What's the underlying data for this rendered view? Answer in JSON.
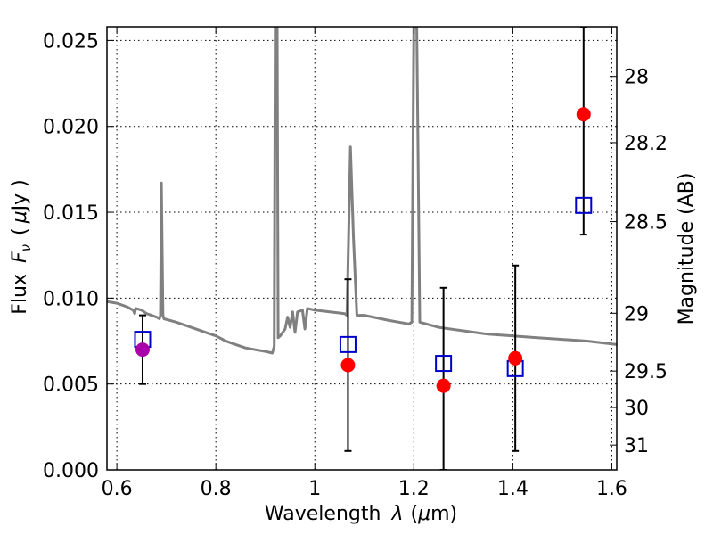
{
  "chart_data": {
    "type": "scatter",
    "xlabel": "Wavelength",
    "xlabel_symbol": "λ",
    "xlabel_unit_open": "(",
    "xlabel_unit_mu": "μ",
    "xlabel_unit_rest": "m)",
    "ylabel": "Flux",
    "ylabel_symbol": "F",
    "ylabel_symbol_sub": "ν",
    "ylabel_unit_open": "(",
    "ylabel_unit_mu": "μ",
    "ylabel_unit_rest": "Jy )",
    "y2label": "Magnitude (AB)",
    "xlim": [
      0.58,
      1.61
    ],
    "ylim": [
      0.0,
      0.0258
    ],
    "grid": true,
    "x_ticks": [
      {
        "value": 0.6,
        "label": "0.6"
      },
      {
        "value": 0.8,
        "label": "0.8"
      },
      {
        "value": 1.0,
        "label": "1"
      },
      {
        "value": 1.2,
        "label": "1.2"
      },
      {
        "value": 1.4,
        "label": "1.4"
      },
      {
        "value": 1.6,
        "label": "1.6"
      }
    ],
    "y_ticks": [
      {
        "value": 0.0,
        "label": "0.000"
      },
      {
        "value": 0.005,
        "label": "0.005"
      },
      {
        "value": 0.01,
        "label": "0.010"
      },
      {
        "value": 0.015,
        "label": "0.015"
      },
      {
        "value": 0.02,
        "label": "0.020"
      },
      {
        "value": 0.025,
        "label": "0.025"
      }
    ],
    "y2_ticks": [
      {
        "value": 28,
        "label": "28"
      },
      {
        "value": 28.2,
        "label": "28.2"
      },
      {
        "value": 28.5,
        "label": "28.5"
      },
      {
        "value": 29,
        "label": "29"
      },
      {
        "value": 29.5,
        "label": "29.5"
      },
      {
        "value": 30,
        "label": "30"
      },
      {
        "value": 31,
        "label": "31"
      }
    ],
    "series": [
      {
        "kind": "line",
        "color": "#808080",
        "points": [
          [
            0.58,
            0.0098
          ],
          [
            0.6,
            0.0097
          ],
          [
            0.62,
            0.0095
          ],
          [
            0.633,
            0.0093
          ],
          [
            0.636,
            0.0091
          ],
          [
            0.638,
            0.0094
          ],
          [
            0.65,
            0.0093
          ],
          [
            0.66,
            0.0091
          ],
          [
            0.67,
            0.009
          ],
          [
            0.68,
            0.0089
          ],
          [
            0.686,
            0.0088
          ],
          [
            0.688,
            0.009
          ],
          [
            0.69,
            0.0167
          ],
          [
            0.693,
            0.009
          ],
          [
            0.695,
            0.0088
          ],
          [
            0.72,
            0.0086
          ],
          [
            0.75,
            0.0083
          ],
          [
            0.78,
            0.008
          ],
          [
            0.8,
            0.0078
          ],
          [
            0.82,
            0.0075
          ],
          [
            0.84,
            0.0073
          ],
          [
            0.86,
            0.0071
          ],
          [
            0.88,
            0.007
          ],
          [
            0.9,
            0.0069
          ],
          [
            0.914,
            0.0068
          ],
          [
            0.918,
            0.0072
          ],
          [
            0.92,
            0.0258
          ],
          [
            0.924,
            0.0258
          ],
          [
            0.926,
            0.0077
          ],
          [
            0.93,
            0.0078
          ],
          [
            0.94,
            0.0082
          ],
          [
            0.945,
            0.0089
          ],
          [
            0.95,
            0.0083
          ],
          [
            0.955,
            0.0092
          ],
          [
            0.96,
            0.008
          ],
          [
            0.965,
            0.0092
          ],
          [
            0.975,
            0.0093
          ],
          [
            0.98,
            0.0082
          ],
          [
            0.985,
            0.0094
          ],
          [
            1.0,
            0.0093
          ],
          [
            1.03,
            0.0092
          ],
          [
            1.06,
            0.0091
          ],
          [
            1.065,
            0.009
          ],
          [
            1.072,
            0.0188
          ],
          [
            1.078,
            0.0135
          ],
          [
            1.085,
            0.009
          ],
          [
            1.1,
            0.009
          ],
          [
            1.15,
            0.0087
          ],
          [
            1.19,
            0.0085
          ],
          [
            1.196,
            0.0086
          ],
          [
            1.2,
            0.0258
          ],
          [
            1.206,
            0.0258
          ],
          [
            1.212,
            0.0086
          ],
          [
            1.25,
            0.0083
          ],
          [
            1.3,
            0.0081
          ],
          [
            1.35,
            0.0079
          ],
          [
            1.4,
            0.0078
          ],
          [
            1.45,
            0.0077
          ],
          [
            1.5,
            0.0076
          ],
          [
            1.55,
            0.0075
          ],
          [
            1.61,
            0.0073
          ]
        ]
      },
      {
        "kind": "errorbar",
        "color": "#000000",
        "items": [
          {
            "x": 0.652,
            "y": 0.007,
            "ylo": 0.005,
            "yhi": 0.009
          },
          {
            "x": 1.067,
            "y": 0.0061,
            "ylo": 0.0011,
            "yhi": 0.0111
          },
          {
            "x": 1.26,
            "y": 0.0062,
            "ylo": 0.0,
            "yhi": 0.0106
          },
          {
            "x": 1.405,
            "y": 0.0065,
            "ylo": 0.0011,
            "yhi": 0.0119
          },
          {
            "x": 1.543,
            "y": 0.0155,
            "ylo": 0.0137,
            "yhi": 0.0258
          }
        ]
      },
      {
        "kind": "open-square",
        "color": "#0000cc",
        "points": [
          [
            0.652,
            0.0076
          ],
          [
            1.067,
            0.0073
          ],
          [
            1.26,
            0.0062
          ],
          [
            1.405,
            0.0059
          ],
          [
            1.543,
            0.0154
          ]
        ]
      },
      {
        "kind": "filled-circle",
        "color": "#ff0000",
        "points": [
          [
            1.067,
            0.0061
          ],
          [
            1.26,
            0.0049
          ],
          [
            1.405,
            0.0065
          ],
          [
            1.543,
            0.0207
          ]
        ]
      },
      {
        "kind": "filled-circle",
        "color": "#aa00aa",
        "points": [
          [
            0.652,
            0.007
          ]
        ]
      }
    ]
  }
}
